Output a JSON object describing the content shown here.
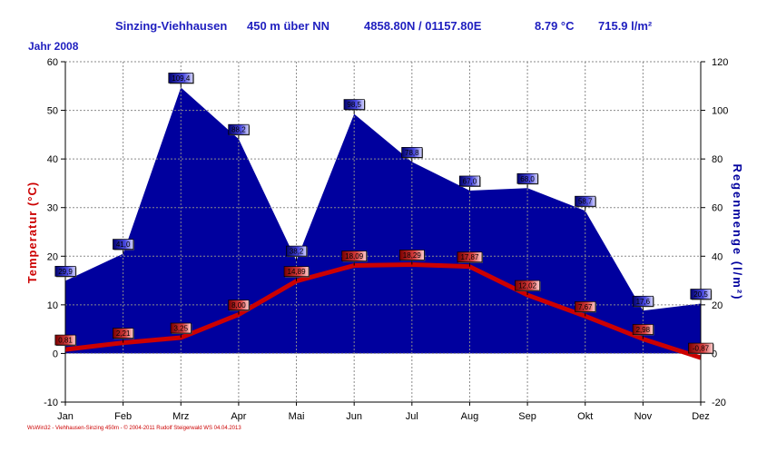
{
  "header": {
    "station": "Sinzing-Viehhausen",
    "altitude": "450 m über NN",
    "coords": "4858.80N / 01157.80E",
    "avg_temp": "8.79 °C",
    "rain_total": "715.9 l/m²",
    "year": "Jahr  2008"
  },
  "footer": "WsWin32 - Viehhausen-Sinzing 450m - © 2004-2011 Rudolf Steigerwald WS  04.04.2013",
  "colors": {
    "temp": "#cc0000",
    "rain": "#00009e",
    "title": "#1f1fbf"
  },
  "chart_data": {
    "type": "area",
    "categories": [
      "Jan",
      "Feb",
      "Mrz",
      "Apr",
      "Mai",
      "Jun",
      "Jul",
      "Aug",
      "Sep",
      "Okt",
      "Nov",
      "Dez"
    ],
    "ylabel_left": "Temperatur  (°C)",
    "ylabel_right": "Regenmenge  (l/m²)",
    "ylim_left": [
      -10,
      60
    ],
    "ylim_right": [
      -20,
      120
    ],
    "yticks_left": [
      -10,
      0,
      10,
      20,
      30,
      40,
      50,
      60
    ],
    "yticks_right": [
      -20,
      0,
      20,
      40,
      60,
      80,
      100,
      120
    ],
    "grid": true,
    "series": [
      {
        "axis": "right",
        "type": "area",
        "values": [
          29.9,
          41.0,
          109.4,
          88.2,
          38.2,
          98.5,
          78.8,
          67.0,
          68.0,
          58.7,
          17.6,
          20.5
        ],
        "labels": [
          "29,9",
          "41,0",
          "109,4",
          "88,2",
          "38,2",
          "98,5",
          "78,8",
          "67,0",
          "68,0",
          "58,7",
          "17,6",
          "20,5"
        ]
      },
      {
        "axis": "left",
        "type": "line",
        "values": [
          0.81,
          2.21,
          3.25,
          8.0,
          14.89,
          18.09,
          18.29,
          17.87,
          12.02,
          7.67,
          2.98,
          -0.87
        ],
        "labels": [
          "0,81",
          "2,21",
          "3,25",
          "8,00",
          "14,89",
          "18,09",
          "18,29",
          "17,87",
          "12,02",
          "7,67",
          "2,98",
          "-0,87"
        ]
      }
    ]
  }
}
